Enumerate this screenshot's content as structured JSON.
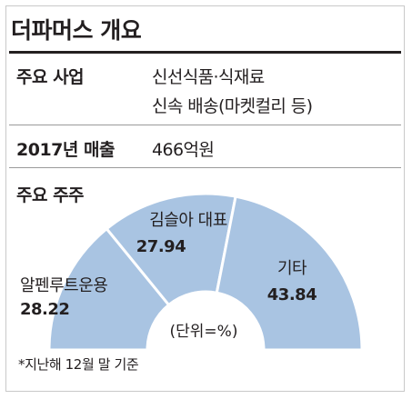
{
  "title": "더파머스 개요",
  "business": {
    "label": "주요 사업",
    "line1": "신선식품·식재료",
    "line2": "신속 배송(마켓컬리 등)"
  },
  "revenue": {
    "label": "2017년 매출",
    "value": "466억원"
  },
  "shareholders": {
    "label": "주요 주주",
    "unit": "(단위=%)"
  },
  "chart_data": {
    "type": "pie",
    "title": "주요 주주",
    "unit": "(단위=%)",
    "segments": [
      {
        "name": "알펜루트운용",
        "value": 28.22,
        "value_label": "28.22"
      },
      {
        "name": "김슬아 대표",
        "value": 27.94,
        "value_label": "27.94"
      },
      {
        "name": "기타",
        "value": 43.84,
        "value_label": "43.84"
      }
    ],
    "colors": {
      "fill": "#a9c4e2",
      "divider": "#ffffff"
    }
  },
  "footnote": "*지난해 12월 말 기준"
}
